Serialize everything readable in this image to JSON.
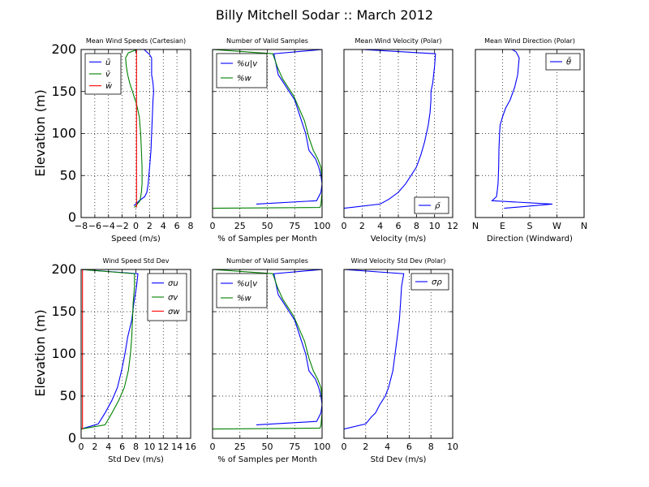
{
  "figure": {
    "title": "Billy Mitchell Sodar :: March 2012",
    "ylabel": "Elevation (m)"
  },
  "colors": {
    "blue": "#0000ff",
    "green": "#008000",
    "red": "#ff0000",
    "grid": "#000000"
  },
  "chart_data": [
    {
      "id": "p1",
      "type": "line",
      "title": "Mean Wind Speeds (Cartesian)",
      "xlabel": "Speed (m/s)",
      "xlim": [
        -8,
        8
      ],
      "ylim": [
        0,
        200
      ],
      "xticks": [
        -8,
        -6,
        -4,
        -2,
        0,
        2,
        4,
        6,
        8
      ],
      "xticklabels": [
        "−8",
        "−6",
        "−4",
        "−2",
        "0",
        "2",
        "4",
        "6",
        "8"
      ],
      "yticks": [
        0,
        50,
        100,
        150,
        200
      ],
      "legend": "top-left",
      "series": [
        {
          "name": "ū",
          "color": "blue",
          "x": [
            -0.3,
            0.5,
            1.3,
            1.6,
            1.8,
            1.9,
            2.0,
            2.2,
            2.3,
            2.4,
            2.5,
            2.6,
            2.5,
            2.3,
            2.3,
            2.0,
            1.2,
            0.2
          ],
          "y": [
            14,
            20,
            25,
            30,
            40,
            50,
            60,
            80,
            100,
            120,
            140,
            150,
            160,
            170,
            190,
            194,
            200,
            200
          ]
        },
        {
          "name": "v̄",
          "color": "green",
          "x": [
            -0.2,
            0.6,
            0.8,
            0.9,
            0.9,
            0.8,
            0.7,
            0.5,
            0.1,
            -0.5,
            -0.9,
            -1.2,
            -1.4,
            -1.5,
            -1.1,
            0.2
          ],
          "y": [
            12,
            20,
            30,
            40,
            60,
            80,
            100,
            120,
            135,
            150,
            160,
            170,
            180,
            190,
            196,
            200
          ]
        },
        {
          "name": "w̄",
          "color": "red",
          "x": [
            0.1,
            0.1,
            0.1,
            0.1,
            0.1,
            0.1,
            0.1,
            0.1
          ],
          "y": [
            12,
            20,
            50,
            100,
            130,
            150,
            180,
            200
          ]
        }
      ]
    },
    {
      "id": "p2",
      "type": "line",
      "title": "Number of Valid Samples",
      "xlabel": "% of Samples per Month",
      "xlim": [
        0,
        100
      ],
      "ylim": [
        0,
        200
      ],
      "xticks": [
        0,
        25,
        50,
        75,
        100
      ],
      "xticklabels": [
        "0",
        "25",
        "50",
        "75",
        "100"
      ],
      "yticks": [
        0,
        50,
        100,
        150,
        200
      ],
      "legend": "top-left",
      "series": [
        {
          "name": "%u|v",
          "color": "blue",
          "x": [
            40,
            95,
            99,
            100,
            99,
            97,
            94,
            88,
            85,
            80,
            75,
            70,
            65,
            60,
            56,
            100
          ],
          "y": [
            16,
            20,
            30,
            40,
            50,
            60,
            70,
            80,
            100,
            120,
            140,
            150,
            160,
            170,
            195,
            200
          ]
        },
        {
          "name": "%w",
          "color": "green",
          "x": [
            0,
            98,
            99,
            100,
            100,
            99,
            96,
            92,
            88,
            84,
            79,
            74,
            69,
            64,
            59,
            55,
            0
          ],
          "y": [
            11,
            12,
            15,
            30,
            45,
            60,
            70,
            80,
            95,
            115,
            130,
            145,
            155,
            165,
            180,
            195,
            200
          ]
        }
      ]
    },
    {
      "id": "p3",
      "type": "line",
      "title": "Mean Wind Velocity (Polar)",
      "xlabel": "Velocity (m/s)",
      "xlim": [
        0,
        12
      ],
      "ylim": [
        0,
        200
      ],
      "xticks": [
        0,
        2,
        4,
        6,
        8,
        10,
        12
      ],
      "xticklabels": [
        "0",
        "2",
        "4",
        "6",
        "8",
        "10",
        "12"
      ],
      "yticks": [
        0,
        50,
        100,
        150,
        200
      ],
      "legend": "bottom-right",
      "series": [
        {
          "name": "ρ̄",
          "color": "blue",
          "x": [
            0,
            4,
            5,
            6,
            6.8,
            7.4,
            8,
            8.5,
            8.9,
            9.3,
            9.5,
            9.6,
            9.6,
            9.8,
            9.9,
            10.0,
            10.1,
            2.0
          ],
          "y": [
            11,
            16,
            22,
            30,
            40,
            50,
            60,
            75,
            90,
            110,
            125,
            140,
            150,
            160,
            170,
            180,
            195,
            200
          ]
        }
      ]
    },
    {
      "id": "p4",
      "type": "line",
      "title": "Mean Wind Direction (Polar)",
      "xlabel": "Direction (Windward)",
      "xlim": [
        0,
        360
      ],
      "ylim": [
        0,
        200
      ],
      "xticks": [
        0,
        90,
        180,
        270,
        360
      ],
      "xticklabels": [
        "N",
        "E",
        "S",
        "W",
        "N"
      ],
      "yticks": [
        0,
        50,
        100,
        150,
        200
      ],
      "legend": "top-right",
      "series": [
        {
          "name": "θ̄",
          "color": "blue",
          "x": [
            95,
            255,
            55,
            70,
            75,
            77,
            78,
            80,
            82,
            90,
            100,
            115,
            130,
            140,
            145,
            135,
            122
          ],
          "y": [
            11,
            16,
            20,
            25,
            40,
            60,
            80,
            100,
            110,
            120,
            130,
            140,
            155,
            170,
            190,
            197,
            200
          ]
        }
      ]
    },
    {
      "id": "p5",
      "type": "line",
      "title": "Wind Speed Std Dev",
      "xlabel": "Std Dev (m/s)",
      "xlim": [
        0,
        16
      ],
      "ylim": [
        0,
        200
      ],
      "xticks": [
        0,
        2,
        4,
        6,
        8,
        10,
        12,
        14,
        16
      ],
      "xticklabels": [
        "0",
        "2",
        "4",
        "6",
        "8",
        "10",
        "12",
        "14",
        "16"
      ],
      "yticks": [
        0,
        50,
        100,
        150,
        200
      ],
      "legend": "top-right",
      "series": [
        {
          "name": "σu",
          "color": "blue",
          "x": [
            0,
            2.5,
            3.5,
            4.5,
            5.3,
            5.9,
            6.4,
            6.8,
            7.4,
            7.7,
            8.1,
            8.3,
            0
          ],
          "y": [
            11,
            17,
            30,
            45,
            60,
            80,
            100,
            120,
            140,
            160,
            180,
            195,
            200
          ]
        },
        {
          "name": "σv",
          "color": "green",
          "x": [
            0,
            3.5,
            4.5,
            5.5,
            6.3,
            6.9,
            7.2,
            7.4,
            7.5,
            7.6,
            7.8,
            7.8,
            0
          ],
          "y": [
            11,
            16,
            30,
            45,
            60,
            80,
            100,
            120,
            140,
            160,
            180,
            195,
            200
          ]
        },
        {
          "name": "σw",
          "color": "red",
          "x": [
            0.2,
            0.2,
            0.2,
            0.2,
            0.2,
            0.2,
            0.2
          ],
          "y": [
            11,
            30,
            60,
            100,
            140,
            180,
            200
          ]
        }
      ]
    },
    {
      "id": "p6",
      "type": "line",
      "title": "Number of Valid Samples",
      "xlabel": "% of Samples per Month",
      "xlim": [
        0,
        100
      ],
      "ylim": [
        0,
        200
      ],
      "xticks": [
        0,
        25,
        50,
        75,
        100
      ],
      "xticklabels": [
        "0",
        "25",
        "50",
        "75",
        "100"
      ],
      "yticks": [
        0,
        50,
        100,
        150,
        200
      ],
      "legend": "top-left",
      "series": [
        {
          "name": "%u|v",
          "color": "blue",
          "x": [
            40,
            95,
            99,
            100,
            99,
            97,
            94,
            88,
            85,
            80,
            75,
            70,
            65,
            60,
            56,
            100
          ],
          "y": [
            16,
            20,
            30,
            40,
            50,
            60,
            70,
            80,
            100,
            120,
            140,
            150,
            160,
            170,
            195,
            200
          ]
        },
        {
          "name": "%w",
          "color": "green",
          "x": [
            0,
            98,
            99,
            100,
            100,
            99,
            96,
            92,
            88,
            84,
            79,
            74,
            69,
            64,
            59,
            55,
            0
          ],
          "y": [
            11,
            12,
            15,
            30,
            45,
            60,
            70,
            80,
            95,
            115,
            130,
            145,
            155,
            165,
            180,
            195,
            200
          ]
        }
      ]
    },
    {
      "id": "p7",
      "type": "line",
      "title": "Wind Velocity Std Dev (Polar)",
      "xlabel": "Std Dev (m/s)",
      "xlim": [
        0,
        10
      ],
      "ylim": [
        0,
        200
      ],
      "xticks": [
        0,
        2,
        4,
        6,
        8,
        10
      ],
      "xticklabels": [
        "0",
        "2",
        "4",
        "6",
        "8",
        "10"
      ],
      "yticks": [
        0,
        50,
        100,
        150,
        200
      ],
      "legend": "top-right",
      "series": [
        {
          "name": "σρ",
          "color": "blue",
          "x": [
            0,
            2.0,
            2.5,
            2.9,
            3.3,
            3.8,
            4.1,
            4.3,
            4.5,
            4.7,
            4.9,
            5.1,
            5.2,
            5.3,
            5.5,
            0
          ],
          "y": [
            11,
            17,
            25,
            30,
            40,
            50,
            60,
            70,
            80,
            100,
            120,
            140,
            160,
            180,
            195,
            200
          ]
        }
      ]
    }
  ]
}
